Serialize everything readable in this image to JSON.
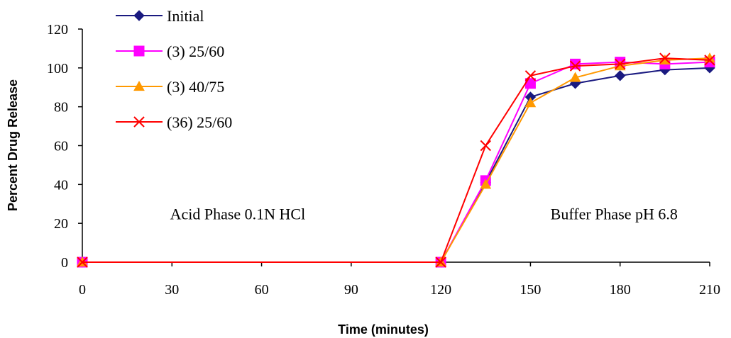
{
  "chart_data": {
    "type": "line",
    "title": "",
    "xlabel": "Time (minutes)",
    "ylabel": "Percent Drug Release",
    "xlim": [
      0,
      210
    ],
    "ylim": [
      0,
      120
    ],
    "xticks": [
      0,
      30,
      60,
      90,
      120,
      150,
      180,
      210
    ],
    "yticks": [
      0,
      20,
      40,
      60,
      80,
      100,
      120
    ],
    "grid": false,
    "legend_position": "top-left",
    "annotations": [
      {
        "text": "Acid Phase 0.1N HCl",
        "x": 52,
        "y": 25
      },
      {
        "text": "Buffer Phase pH 6.8",
        "x": 178,
        "y": 25
      }
    ],
    "series": [
      {
        "name": "Initial",
        "color": "#1a1a80",
        "marker": "diamond",
        "x": [
          0,
          120,
          135,
          150,
          165,
          180,
          195,
          210
        ],
        "y": [
          0,
          0,
          41,
          85,
          92,
          96,
          99,
          100
        ]
      },
      {
        "name": "(3) 25/60",
        "color": "#ff00ff",
        "marker": "square",
        "x": [
          0,
          120,
          135,
          150,
          165,
          180,
          195,
          210
        ],
        "y": [
          0,
          0,
          42,
          92,
          102,
          103,
          102,
          103
        ]
      },
      {
        "name": "(3) 40/75",
        "color": "#ff9900",
        "marker": "triangle",
        "x": [
          0,
          120,
          135,
          150,
          165,
          180,
          195,
          210
        ],
        "y": [
          0,
          0,
          40,
          82,
          95,
          101,
          104,
          105
        ]
      },
      {
        "name": "(36) 25/60",
        "color": "#ff0000",
        "marker": "x",
        "x": [
          0,
          120,
          135,
          150,
          165,
          180,
          195,
          210
        ],
        "y": [
          0,
          0,
          60,
          96,
          101,
          102,
          105,
          104
        ]
      }
    ]
  }
}
